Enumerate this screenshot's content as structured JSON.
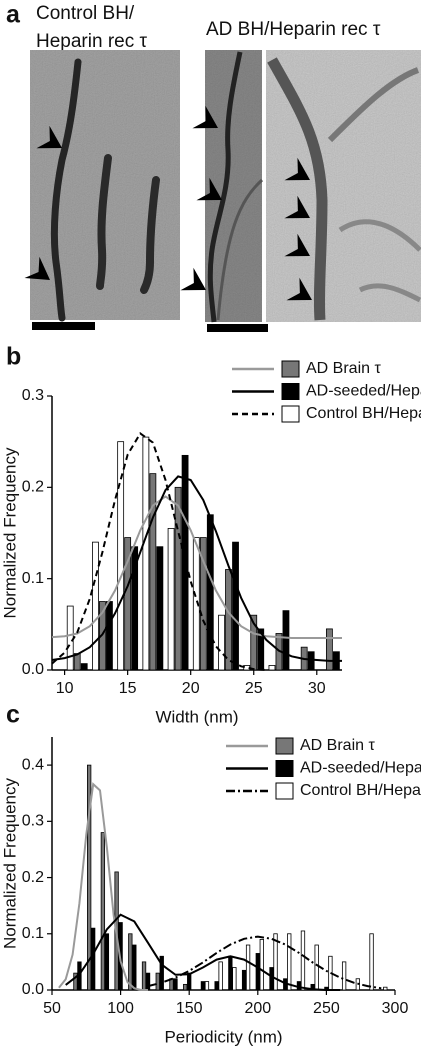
{
  "panel_a": {
    "label": "a",
    "left_title": [
      "Control BH/",
      "Heparin rec τ"
    ],
    "right_title": "AD BH/Heparin rec τ"
  },
  "chart_data": [
    {
      "type": "bar",
      "panel_label": "b",
      "xlabel": "Width (nm)",
      "ylabel": "Normalized Frequency",
      "xlim": [
        9,
        32
      ],
      "ylim": [
        0,
        0.3
      ],
      "xticks": [
        10,
        15,
        20,
        25,
        30
      ],
      "yticks": [
        {
          "value": 0,
          "label": "0.0"
        },
        0.1,
        0.2,
        0.3
      ],
      "x": [
        11,
        13,
        15,
        17,
        19,
        21,
        23,
        25,
        27,
        29,
        31
      ],
      "series": [
        {
          "name": "AD Brain τ",
          "color": "#777777",
          "line_color": "#9a9a9a",
          "linestyle": "solid",
          "values": [
            0.018,
            0.075,
            0.145,
            0.215,
            0.2,
            0.145,
            0.11,
            0.06,
            0.04,
            0.025,
            0.045
          ],
          "fit": {
            "x": [
              9,
              10,
              11,
              12,
              13,
              14,
              15,
              16,
              17,
              18,
              19,
              20,
              21,
              22,
              23,
              24,
              25,
              26,
              27,
              28,
              29,
              30,
              31,
              32
            ],
            "values": [
              0.036,
              0.037,
              0.04,
              0.048,
              0.063,
              0.087,
              0.119,
              0.153,
              0.18,
              0.19,
              0.18,
              0.153,
              0.119,
              0.087,
              0.063,
              0.048,
              0.04,
              0.037,
              0.036,
              0.035,
              0.035,
              0.035,
              0.035,
              0.035
            ]
          }
        },
        {
          "name": "AD-seeded/Heparin rec τ",
          "color": "#000000",
          "line_color": "#000000",
          "linestyle": "solid",
          "values": [
            0.007,
            0.075,
            0.135,
            0.135,
            0.235,
            0.17,
            0.14,
            0.045,
            0.065,
            0.02,
            0.02
          ],
          "fit": {
            "x": [
              9,
              10,
              11,
              12,
              13,
              14,
              15,
              16,
              17,
              18,
              19,
              20,
              21,
              22,
              23,
              24,
              25,
              26,
              27,
              28,
              29,
              30,
              31,
              32
            ],
            "values": [
              0.011,
              0.013,
              0.017,
              0.025,
              0.039,
              0.062,
              0.092,
              0.129,
              0.167,
              0.197,
              0.212,
              0.208,
              0.186,
              0.152,
              0.114,
              0.079,
              0.051,
              0.033,
              0.021,
              0.015,
              0.012,
              0.011,
              0.01,
              0.01
            ]
          }
        },
        {
          "name": "Control BH/Heparin rec τ",
          "color": "#ffffff",
          "line_color": "#000000",
          "linestyle": "dashed",
          "values": [
            0.07,
            0.14,
            0.25,
            0.255,
            0.155,
            0.145,
            0.06,
            0.005,
            0.005,
            0,
            0
          ],
          "fit": {
            "x": [
              9,
              10,
              11,
              12,
              13,
              14,
              15,
              16,
              17,
              18,
              19,
              20,
              21,
              22,
              23,
              24,
              25,
              26
            ],
            "values": [
              0.007,
              0.019,
              0.041,
              0.078,
              0.129,
              0.186,
              0.236,
              0.259,
              0.249,
              0.208,
              0.152,
              0.097,
              0.054,
              0.026,
              0.011,
              0.004,
              0.001,
              0
            ]
          }
        }
      ]
    },
    {
      "type": "bar",
      "panel_label": "c",
      "xlabel": "Periodicity (nm)",
      "ylabel": "Normalized Frequency",
      "xlim": [
        50,
        300
      ],
      "ylim": [
        0,
        0.45
      ],
      "xticks": [
        50,
        100,
        150,
        200,
        250,
        300
      ],
      "yticks": [
        {
          "value": 0,
          "label": "0.0"
        },
        0.1,
        0.2,
        0.3,
        0.4
      ],
      "x": [
        60,
        70,
        80,
        90,
        100,
        110,
        120,
        130,
        140,
        150,
        160,
        170,
        180,
        190,
        200,
        210,
        220,
        230,
        240,
        250,
        260,
        270,
        280,
        290
      ],
      "series": [
        {
          "name": "AD Brain τ",
          "color": "#777777",
          "line_color": "#9a9a9a",
          "linestyle": "solid",
          "values": [
            0,
            0.03,
            0.4,
            0.28,
            0.21,
            0.1,
            0.05,
            0.03,
            0.02,
            0.01,
            0,
            0,
            0,
            0,
            0,
            0,
            0,
            0,
            0,
            0,
            0,
            0,
            0,
            0
          ],
          "fit": {
            "x": [
              55,
              60,
              65,
              70,
              75,
              80,
              85,
              90,
              95,
              100,
              105,
              110,
              115,
              120
            ],
            "values": [
              0.004,
              0.019,
              0.063,
              0.154,
              0.277,
              0.366,
              0.355,
              0.253,
              0.132,
              0.051,
              0.014,
              0.003,
              0,
              0
            ]
          }
        },
        {
          "name": "AD-seeded/Heparin rec τ",
          "color": "#000000",
          "line_color": "#000000",
          "linestyle": "solid",
          "values": [
            0,
            0.05,
            0.11,
            0.1,
            0.12,
            0.08,
            0.03,
            0.06,
            0.02,
            0.03,
            0.015,
            0.015,
            0.06,
            0.035,
            0.065,
            0.04,
            0.02,
            0.015,
            0.01,
            0.005,
            0,
            0,
            0,
            0
          ],
          "fit": {
            "x": [
              60,
              70,
              80,
              90,
              100,
              110,
              120,
              130,
              140,
              150,
              160,
              170,
              180,
              190,
              200,
              210,
              220,
              230,
              240,
              250,
              260
            ],
            "values": [
              0.009,
              0.028,
              0.064,
              0.108,
              0.134,
              0.122,
              0.084,
              0.045,
              0.027,
              0.028,
              0.04,
              0.054,
              0.06,
              0.054,
              0.04,
              0.024,
              0.012,
              0.005,
              0.0015,
              0,
              0
            ]
          }
        },
        {
          "name": "Control BH/Heparin rec τ",
          "color": "#ffffff",
          "line_color": "#000000",
          "linestyle": "dashdot",
          "values": [
            0,
            0,
            0,
            0,
            0,
            0,
            0,
            0,
            0,
            0,
            0.015,
            0.05,
            0.04,
            0.08,
            0.09,
            0.1,
            0.1,
            0.105,
            0.08,
            0.06,
            0.05,
            0.02,
            0.1,
            0.005
          ],
          "fit": {
            "x": [
              120,
              130,
              140,
              150,
              160,
              170,
              180,
              190,
              200,
              210,
              220,
              230,
              240,
              250,
              260,
              270,
              280,
              290
            ],
            "values": [
              0.007,
              0.013,
              0.022,
              0.034,
              0.049,
              0.066,
              0.081,
              0.091,
              0.095,
              0.091,
              0.081,
              0.066,
              0.049,
              0.034,
              0.022,
              0.013,
              0.007,
              0.003
            ]
          }
        }
      ]
    }
  ]
}
